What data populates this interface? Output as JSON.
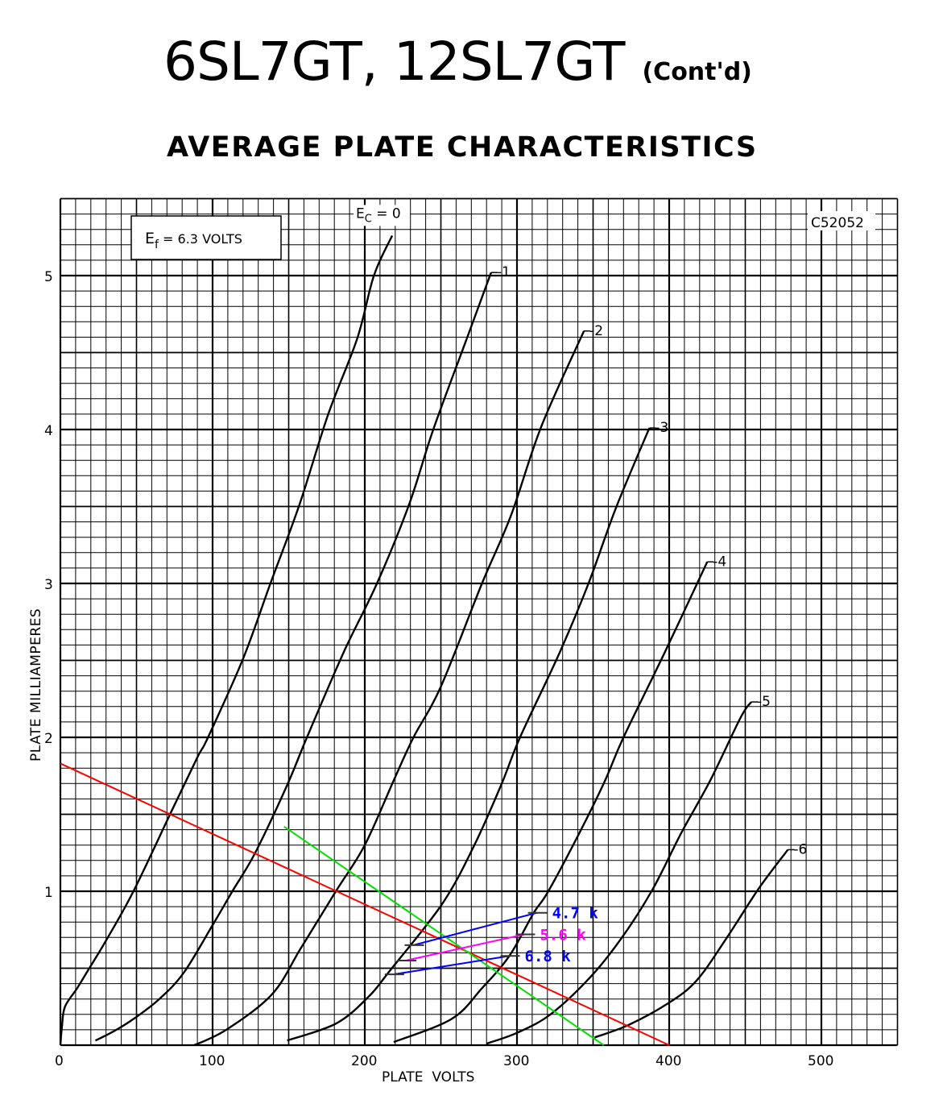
{
  "chart_data": {
    "type": "line",
    "title": "6SL7GT, 12SL7GT",
    "title_suffix": "(Cont'd)",
    "subtitle": "AVERAGE PLATE CHARACTERISTICS",
    "note": {
      "prefix": "E",
      "sub": "f",
      "rest": " = 6.3 VOLTS"
    },
    "figure_code": "C52052",
    "xlabel": "PLATE  VOLTS",
    "ylabel": "PLATE MILLIAMPERES",
    "xlim": [
      0,
      550
    ],
    "ylim": [
      0,
      5.5
    ],
    "xticks": [
      "0",
      "100",
      "200",
      "300",
      "400",
      "500"
    ],
    "yticks": [
      "1",
      "2",
      "3",
      "4",
      "5"
    ],
    "grid": {
      "minor_x": 10,
      "minor_y": 0.1,
      "major_x": 100,
      "major_y": 1
    },
    "series": [
      {
        "name": "0",
        "label_prefix": "E",
        "label_sub": "C",
        "label_rest": " = 0",
        "points": [
          [
            0,
            0
          ],
          [
            1,
            0.12
          ],
          [
            3,
            0.25
          ],
          [
            11,
            0.37
          ],
          [
            19,
            0.5
          ],
          [
            30,
            0.68
          ],
          [
            48,
            1.0
          ],
          [
            73,
            1.52
          ],
          [
            90,
            1.87
          ],
          [
            97,
            2.0
          ],
          [
            120,
            2.51
          ],
          [
            138,
            3.0
          ],
          [
            157,
            3.51
          ],
          [
            176,
            4.1
          ],
          [
            195,
            4.59
          ],
          [
            206,
            5.0
          ],
          [
            218,
            5.26
          ]
        ]
      },
      {
        "name": "-1",
        "points": [
          [
            23,
            0.03
          ],
          [
            35,
            0.09
          ],
          [
            48,
            0.17
          ],
          [
            65,
            0.3
          ],
          [
            81,
            0.47
          ],
          [
            100,
            0.78
          ],
          [
            113,
            1.0
          ],
          [
            128,
            1.25
          ],
          [
            149,
            1.69
          ],
          [
            162,
            2.0
          ],
          [
            186,
            2.55
          ],
          [
            208,
            3.0
          ],
          [
            229,
            3.51
          ],
          [
            245,
            4.0
          ],
          [
            267,
            4.59
          ],
          [
            283,
            5.02
          ]
        ]
      },
      {
        "name": "-2",
        "points": [
          [
            88,
            0
          ],
          [
            109,
            0.1
          ],
          [
            139,
            0.33
          ],
          [
            158,
            0.63
          ],
          [
            181,
            1.0
          ],
          [
            200,
            1.3
          ],
          [
            219,
            1.72
          ],
          [
            232,
            2.0
          ],
          [
            250,
            2.33
          ],
          [
            277,
            3.0
          ],
          [
            296,
            3.44
          ],
          [
            316,
            4.02
          ],
          [
            344,
            4.64
          ]
        ]
      },
      {
        "name": "-3",
        "points": [
          [
            149,
            0.03
          ],
          [
            181,
            0.14
          ],
          [
            202,
            0.31
          ],
          [
            217,
            0.49
          ],
          [
            251,
            0.92
          ],
          [
            272,
            1.3
          ],
          [
            290,
            1.7
          ],
          [
            302,
            2.0
          ],
          [
            328,
            2.55
          ],
          [
            347,
            3.0
          ],
          [
            365,
            3.49
          ],
          [
            387,
            4.01
          ]
        ]
      },
      {
        "name": "-4",
        "points": [
          [
            219,
            0.02
          ],
          [
            257,
            0.17
          ],
          [
            277,
            0.37
          ],
          [
            295,
            0.58
          ],
          [
            311,
            0.86
          ],
          [
            320,
            0.99
          ],
          [
            339,
            1.34
          ],
          [
            357,
            1.7
          ],
          [
            370,
            2.0
          ],
          [
            397,
            2.55
          ],
          [
            425,
            3.14
          ]
        ]
      },
      {
        "name": "-5",
        "points": [
          [
            280,
            0.01
          ],
          [
            300,
            0.08
          ],
          [
            322,
            0.2
          ],
          [
            348,
            0.44
          ],
          [
            369,
            0.7
          ],
          [
            389,
            1.01
          ],
          [
            408,
            1.38
          ],
          [
            427,
            1.72
          ],
          [
            447,
            2.13
          ],
          [
            454,
            2.23
          ]
        ]
      },
      {
        "name": "-6",
        "points": [
          [
            351,
            0.05
          ],
          [
            373,
            0.13
          ],
          [
            399,
            0.27
          ],
          [
            418,
            0.42
          ],
          [
            438,
            0.7
          ],
          [
            459,
            1.02
          ],
          [
            478,
            1.27
          ]
        ]
      }
    ],
    "load_lines": [
      {
        "color": "#ff0000",
        "points": [
          [
            0,
            1.83
          ],
          [
            400,
            0
          ]
        ]
      },
      {
        "color": "#00e000",
        "points": [
          [
            147,
            1.42
          ],
          [
            357,
            0
          ]
        ]
      }
    ],
    "resistor_lines": [
      {
        "label": "4.7 k",
        "color": "#0000ff",
        "points": [
          [
            232,
            0.65
          ],
          [
            313,
            0.86
          ]
        ]
      },
      {
        "label": "5.6 k",
        "color": "#ff00ff",
        "points": [
          [
            227,
            0.55
          ],
          [
            305,
            0.72
          ]
        ]
      },
      {
        "label": "6.8 k",
        "color": "#0000ff",
        "points": [
          [
            219,
            0.46
          ],
          [
            295,
            0.58
          ]
        ]
      }
    ]
  }
}
